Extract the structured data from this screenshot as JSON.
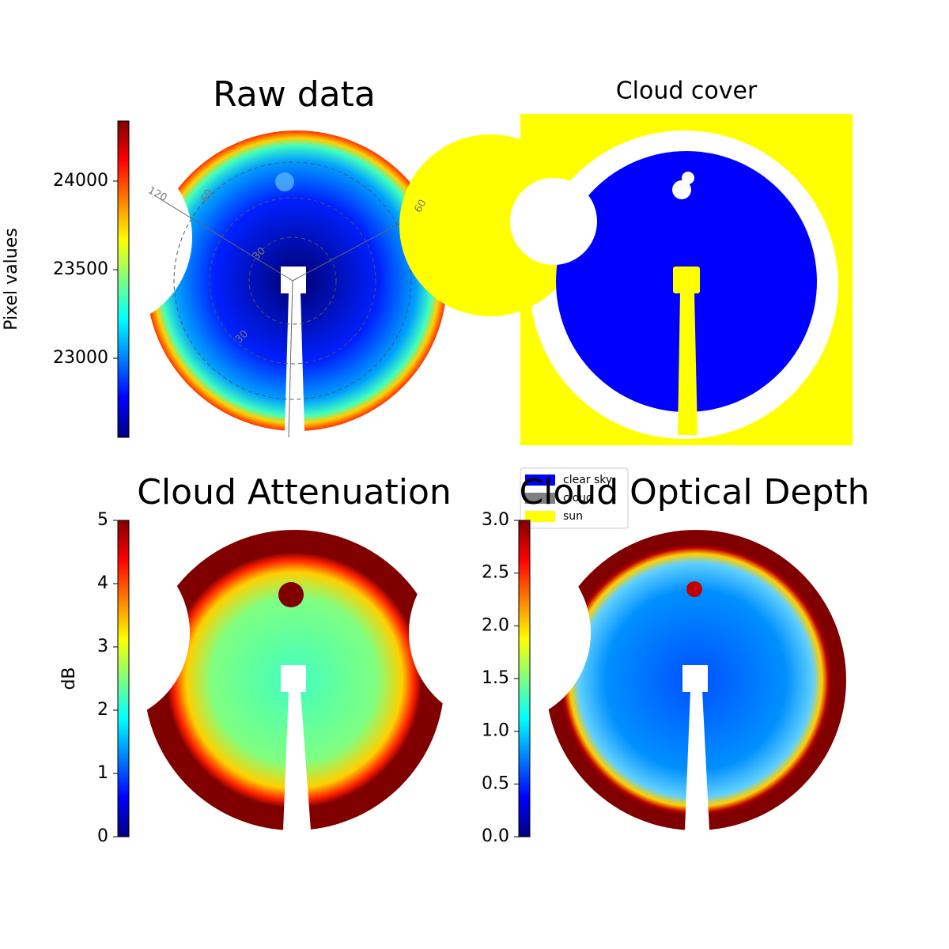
{
  "chart_data": [
    {
      "type": "image",
      "title": "Raw data",
      "colorbar_label": "Pixel values",
      "colormap": "jet",
      "clim": [
        22554,
        24339
      ],
      "cticks": [
        23000,
        23500,
        24000
      ],
      "annotations": [
        "120",
        "60",
        "30",
        "30",
        "60"
      ]
    },
    {
      "type": "mask",
      "title": "Cloud cover",
      "legend": [
        {
          "name": "clear sky",
          "color": "#0000ff"
        },
        {
          "name": "cloud",
          "color": "#808080"
        },
        {
          "name": "sun",
          "color": "#ffff00"
        }
      ]
    },
    {
      "type": "image",
      "title": "Cloud Attenuation",
      "colorbar_label": "dB",
      "colormap": "jet",
      "clim": [
        0,
        5
      ],
      "cticks": [
        0,
        1,
        2,
        3,
        4,
        5
      ]
    },
    {
      "type": "image",
      "title": "Cloud Optical Depth",
      "colormap": "jet",
      "clim": [
        0,
        3
      ],
      "cticks": [
        {
          "value": 0,
          "label": "0.0"
        },
        0.5,
        {
          "value": 1,
          "label": "1.0"
        },
        1.5,
        {
          "value": 2,
          "label": "2.0"
        },
        2.5,
        {
          "value": 3,
          "label": "3.0"
        }
      ]
    }
  ]
}
